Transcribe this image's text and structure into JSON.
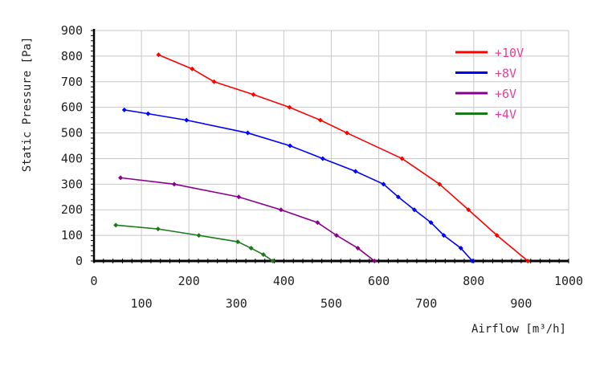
{
  "chart_data": {
    "type": "line",
    "xlabel": "Airflow [m³/h]",
    "ylabel": "Static Pressure [Pa]",
    "xlim": [
      0,
      1000
    ],
    "ylim": [
      0,
      900
    ],
    "x_ticks_top_row": [
      "0",
      "200",
      "400",
      "600",
      "800",
      "1000"
    ],
    "x_ticks_bottom_row": [
      "100",
      "300",
      "500",
      "700",
      "900"
    ],
    "y_ticks": [
      "900",
      "800",
      "700",
      "600",
      "500",
      "400",
      "300",
      "200",
      "100",
      "0"
    ],
    "grid": true,
    "legend_position": "top-right",
    "series": [
      {
        "name": "+10V",
        "color": "#ff0000",
        "x": [
          136,
          207,
          253,
          336,
          412,
          477,
          533,
          649,
          728,
          789,
          849,
          914
        ],
        "y": [
          805,
          750,
          700,
          650,
          600,
          550,
          500,
          400,
          300,
          200,
          100,
          0
        ]
      },
      {
        "name": "+8V",
        "color": "#0000ff",
        "x": [
          64,
          114,
          195,
          324,
          413,
          482,
          551,
          610,
          641,
          675,
          710,
          737,
          773,
          797
        ],
        "y": [
          590,
          575,
          550,
          500,
          450,
          400,
          350,
          300,
          250,
          200,
          150,
          100,
          50,
          0
        ]
      },
      {
        "name": "+6V",
        "color": "#8b008b",
        "x": [
          56,
          169,
          305,
          394,
          471,
          511,
          556,
          591
        ],
        "y": [
          325,
          300,
          250,
          200,
          150,
          100,
          50,
          0
        ]
      },
      {
        "name": "+4V",
        "color": "#1a7a1a",
        "x": [
          46,
          135,
          221,
          303,
          331,
          357,
          377
        ],
        "y": [
          140,
          125,
          100,
          75,
          50,
          25,
          0
        ]
      }
    ]
  }
}
